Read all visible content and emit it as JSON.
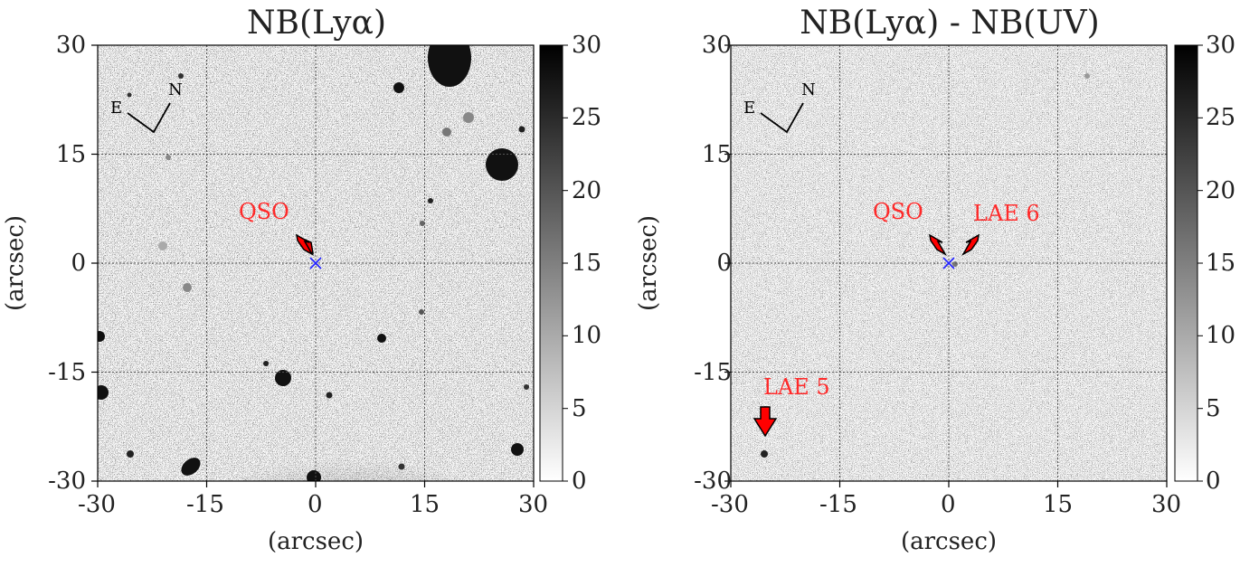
{
  "panels": [
    {
      "title": "NB(Lyα)",
      "xlabel": "(arcsec)",
      "ylabel": "(arcsec)",
      "xticks": [
        "-30",
        "-15",
        "0",
        "15",
        "30"
      ],
      "yticks": [
        "30",
        "15",
        "0",
        "-15",
        "-30"
      ],
      "colorbar_ticks": [
        "30",
        "25",
        "20",
        "15",
        "10",
        "5",
        "0"
      ],
      "compass": {
        "east": "E",
        "north": "N"
      },
      "annotations": [
        {
          "label": "QSO"
        }
      ]
    },
    {
      "title": "NB(Lyα) - NB(UV)",
      "xlabel": "(arcsec)",
      "ylabel": "(arcsec)",
      "xticks": [
        "-30",
        "-15",
        "0",
        "15",
        "30"
      ],
      "yticks": [
        "30",
        "15",
        "0",
        "-15",
        "-30"
      ],
      "colorbar_ticks": [
        "30",
        "25",
        "20",
        "15",
        "10",
        "5",
        "0"
      ],
      "compass": {
        "east": "E",
        "north": "N"
      },
      "annotations": [
        {
          "label": "QSO"
        },
        {
          "label": "LAE 6"
        },
        {
          "label": "LAE 5"
        }
      ]
    }
  ],
  "colors": {
    "annotation": "#ff2a2a",
    "marker": "#2222ff",
    "grid": "#555555"
  }
}
